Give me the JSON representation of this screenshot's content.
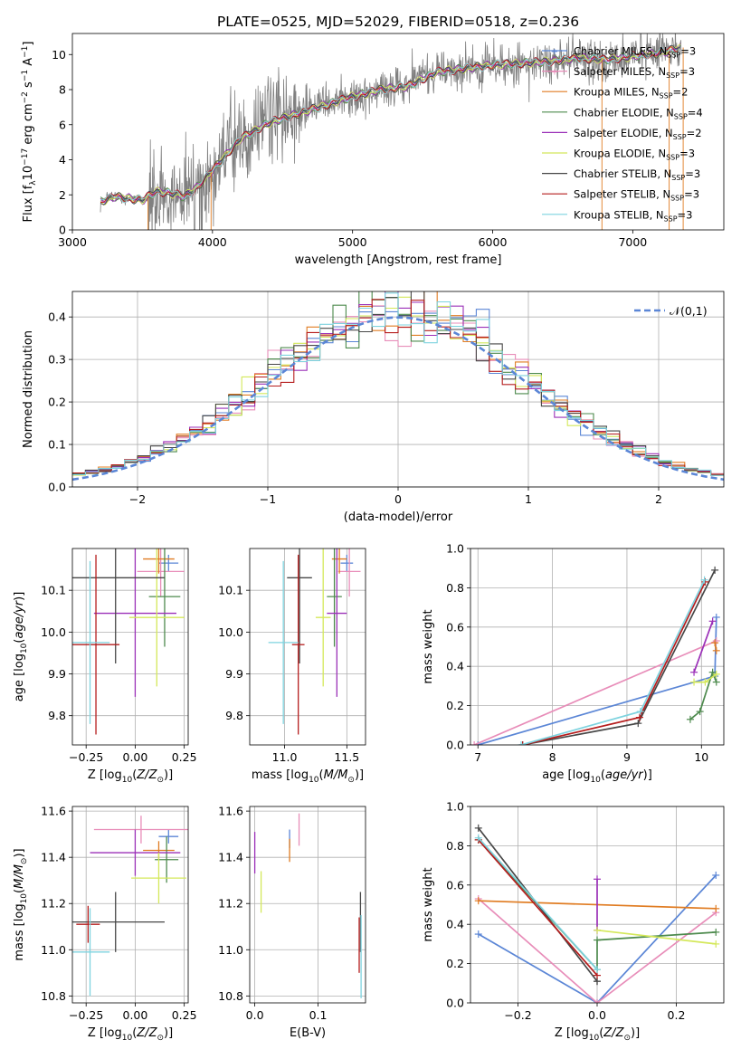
{
  "figure": {
    "title": "PLATE=0525, MJD=52029, FIBERID=0518, z=0.236",
    "models": [
      {
        "name": "Chabrier MILES",
        "nssp": "3",
        "color": "#5b86d6"
      },
      {
        "name": "Salpeter MILES",
        "nssp": "3",
        "color": "#e88db9"
      },
      {
        "name": "Kroupa MILES",
        "nssp": "2",
        "color": "#e07c22"
      },
      {
        "name": "Chabrier ELODIE",
        "nssp": "4",
        "color": "#4d8a4d"
      },
      {
        "name": "Salpeter ELODIE",
        "nssp": "2",
        "color": "#9b30b8"
      },
      {
        "name": "Kroupa ELODIE",
        "nssp": "3",
        "color": "#d4e85a"
      },
      {
        "name": "Chabrier STELIB",
        "nssp": "3",
        "color": "#474747"
      },
      {
        "name": "Salpeter STELIB",
        "nssp": "3",
        "color": "#b51d1d"
      },
      {
        "name": "Kroupa STELIB",
        "nssp": "3",
        "color": "#7ed3df"
      }
    ]
  },
  "chart_data": [
    {
      "id": "spectrum",
      "type": "line",
      "xlabel": "wavelength [Angstrom, rest frame]",
      "ylabel": "Flux [f",
      "xlim": [
        3000,
        7650
      ],
      "ylim": [
        0,
        11.2
      ],
      "xticks": [
        "3000",
        "4000",
        "5000",
        "6000",
        "7000"
      ],
      "yticks": [
        "0",
        "2",
        "4",
        "6",
        "8",
        "10"
      ],
      "data_color": "#808080",
      "continuum": {
        "x": [
          3200,
          3300,
          3400,
          3500,
          3600,
          3700,
          3800,
          3900,
          4000,
          4200,
          4400,
          4600,
          4800,
          5000,
          5200,
          5400,
          5600,
          5800,
          6000,
          6200,
          6400,
          6600,
          6800,
          7000,
          7200,
          7350
        ],
        "y": [
          1.6,
          1.9,
          1.8,
          1.7,
          2.2,
          2.1,
          1.9,
          2.5,
          3.4,
          5.2,
          6.1,
          6.6,
          7.1,
          7.6,
          8.0,
          8.2,
          9.0,
          9.2,
          9.4,
          9.5,
          9.6,
          9.8,
          9.7,
          9.9,
          10.1,
          10.4
        ]
      }
    },
    {
      "id": "residuals",
      "type": "histogram",
      "xlabel": "(data-model)/error",
      "ylabel": "Normed distribution",
      "xlim": [
        -2.5,
        2.5
      ],
      "ylim": [
        0,
        0.46
      ],
      "xticks": [
        -2,
        -1,
        0,
        1,
        2
      ],
      "yticks": [
        0.0,
        0.1,
        0.2,
        0.3,
        0.4
      ],
      "legend": {
        "label": "𝒩(0,1)",
        "position": "top-right"
      },
      "bin_edges": [
        -2.5,
        2.5
      ],
      "nbins": 50
    },
    {
      "id": "age-vs-Z",
      "type": "errorbar",
      "xlabel": "Z [log",
      "ylabel": "age  [log",
      "xlim": [
        -0.32,
        0.27
      ],
      "ylim": [
        9.73,
        10.2
      ],
      "xticks": [
        -0.25,
        0.0,
        0.25
      ],
      "yticks": [
        9.8,
        9.9,
        10.0,
        10.1
      ],
      "points": [
        {
          "model": 0,
          "x": 0.17,
          "xerr": 0.05,
          "y": 10.165,
          "yerr": 0.02
        },
        {
          "model": 1,
          "x": 0.13,
          "xerr": 0.12,
          "y": 10.145,
          "yerr": 0.06
        },
        {
          "model": 2,
          "x": 0.12,
          "xerr": 0.08,
          "y": 10.175,
          "yerr": 0.035
        },
        {
          "model": 3,
          "x": 0.15,
          "xerr": 0.08,
          "y": 10.085,
          "yerr": 0.12
        },
        {
          "model": 4,
          "x": 0.0,
          "xerr": 0.21,
          "y": 10.045,
          "yerr": 0.2
        },
        {
          "model": 5,
          "x": 0.11,
          "xerr": 0.14,
          "y": 10.035,
          "yerr": 0.165
        },
        {
          "model": 6,
          "x": -0.1,
          "xerr": 0.25,
          "y": 10.13,
          "yerr": 0.205
        },
        {
          "model": 7,
          "x": -0.2,
          "xerr": 0.12,
          "y": 9.97,
          "yerr": 0.215
        },
        {
          "model": 8,
          "x": -0.23,
          "xerr": 0.1,
          "y": 9.975,
          "yerr": 0.195
        }
      ]
    },
    {
      "id": "age-vs-mass",
      "type": "errorbar",
      "xlabel": "mass [log",
      "ylabel": "",
      "xlim": [
        10.72,
        11.65
      ],
      "ylim": [
        9.73,
        10.2
      ],
      "xticks": [
        11.0,
        11.5
      ],
      "yticks": [
        9.8,
        9.9,
        10.0,
        10.1
      ],
      "points": [
        {
          "model": 0,
          "x": 11.5,
          "xerr": 0.05,
          "y": 10.165,
          "yerr": 0.02
        },
        {
          "model": 1,
          "x": 11.52,
          "xerr": 0.09,
          "y": 10.145,
          "yerr": 0.06
        },
        {
          "model": 2,
          "x": 11.44,
          "xerr": 0.06,
          "y": 10.175,
          "yerr": 0.035
        },
        {
          "model": 3,
          "x": 11.4,
          "xerr": 0.06,
          "y": 10.085,
          "yerr": 0.12
        },
        {
          "model": 4,
          "x": 11.42,
          "xerr": 0.08,
          "y": 10.045,
          "yerr": 0.2
        },
        {
          "model": 5,
          "x": 11.31,
          "xerr": 0.06,
          "y": 10.035,
          "yerr": 0.165
        },
        {
          "model": 6,
          "x": 11.12,
          "xerr": 0.1,
          "y": 10.13,
          "yerr": 0.205
        },
        {
          "model": 7,
          "x": 11.11,
          "xerr": 0.05,
          "y": 9.97,
          "yerr": 0.215
        },
        {
          "model": 8,
          "x": 10.99,
          "xerr": 0.12,
          "y": 9.975,
          "yerr": 0.195
        }
      ]
    },
    {
      "id": "weight-vs-age",
      "type": "line",
      "xlabel": "age  [log",
      "ylabel": "mass weight",
      "xlim": [
        6.9,
        10.3
      ],
      "ylim": [
        0,
        1.0
      ],
      "xticks": [
        7,
        8,
        9,
        10
      ],
      "yticks": [
        0.0,
        0.2,
        0.4,
        0.6,
        0.8,
        1.0
      ],
      "series": [
        {
          "model": 0,
          "x": [
            7.0,
            10.18,
            10.2
          ],
          "y": [
            0.0,
            0.35,
            0.65
          ]
        },
        {
          "model": 1,
          "x": [
            6.95,
            10.2
          ],
          "y": [
            0.0,
            0.53
          ]
        },
        {
          "model": 2,
          "x": [
            10.18,
            10.2
          ],
          "y": [
            0.52,
            0.48
          ]
        },
        {
          "model": 3,
          "x": [
            9.85,
            9.98,
            10.15,
            10.2
          ],
          "y": [
            0.13,
            0.17,
            0.37,
            0.32
          ]
        },
        {
          "model": 4,
          "x": [
            9.9,
            10.15
          ],
          "y": [
            0.37,
            0.63
          ]
        },
        {
          "model": 5,
          "x": [
            9.9,
            10.05,
            10.2
          ],
          "y": [
            0.32,
            0.32,
            0.36
          ]
        },
        {
          "model": 6,
          "x": [
            7.6,
            9.15,
            10.18
          ],
          "y": [
            0.0,
            0.11,
            0.89
          ]
        },
        {
          "model": 7,
          "x": [
            7.6,
            9.17,
            10.05
          ],
          "y": [
            0.0,
            0.14,
            0.83
          ]
        },
        {
          "model": 8,
          "x": [
            7.58,
            9.18,
            10.04
          ],
          "y": [
            0.0,
            0.17,
            0.84
          ]
        }
      ]
    },
    {
      "id": "mass-vs-Z",
      "type": "errorbar",
      "xlabel": "Z [log",
      "ylabel": "mass [log",
      "xlim": [
        -0.32,
        0.27
      ],
      "ylim": [
        10.77,
        11.62
      ],
      "xticks": [
        -0.25,
        0.0,
        0.25
      ],
      "yticks": [
        10.8,
        11.0,
        11.2,
        11.4,
        11.6
      ],
      "points": [
        {
          "model": 0,
          "x": 0.17,
          "xerr": 0.05,
          "y": 11.49,
          "yerr": 0.03
        },
        {
          "model": 1,
          "x": 0.03,
          "xerr": 0.24,
          "y": 11.52,
          "yerr": 0.06
        },
        {
          "model": 2,
          "x": 0.12,
          "xerr": 0.08,
          "y": 11.43,
          "yerr": 0.04
        },
        {
          "model": 3,
          "x": 0.16,
          "xerr": 0.06,
          "y": 11.39,
          "yerr": 0.1
        },
        {
          "model": 4,
          "x": 0.0,
          "xerr": 0.23,
          "y": 11.42,
          "yerr": 0.1
        },
        {
          "model": 5,
          "x": 0.12,
          "xerr": 0.14,
          "y": 11.31,
          "yerr": 0.11
        },
        {
          "model": 6,
          "x": -0.1,
          "xerr": 0.25,
          "y": 11.12,
          "yerr": 0.13
        },
        {
          "model": 7,
          "x": -0.24,
          "xerr": 0.06,
          "y": 11.11,
          "yerr": 0.08
        },
        {
          "model": 8,
          "x": -0.23,
          "xerr": 0.1,
          "y": 10.99,
          "yerr": 0.19
        }
      ]
    },
    {
      "id": "mass-vs-EBV",
      "type": "errorbar",
      "xlabel": "E(B-V)",
      "ylabel": "",
      "xlim": [
        -0.008,
        0.175
      ],
      "ylim": [
        10.77,
        11.62
      ],
      "xticks": [
        0.0,
        0.1
      ],
      "yticks": [
        10.8,
        11.0,
        11.2,
        11.4,
        11.6
      ],
      "points": [
        {
          "model": 0,
          "x": 0.055,
          "xerr": 0.0,
          "y": 11.48,
          "yerr": 0.04
        },
        {
          "model": 1,
          "x": 0.07,
          "xerr": 0.0,
          "y": 11.52,
          "yerr": 0.07
        },
        {
          "model": 2,
          "x": 0.055,
          "xerr": 0.0,
          "y": 11.43,
          "yerr": 0.05
        },
        {
          "model": 4,
          "x": 0.0,
          "xerr": 0.0,
          "y": 11.42,
          "yerr": 0.09
        },
        {
          "model": 5,
          "x": 0.01,
          "xerr": 0.0,
          "y": 11.25,
          "yerr": 0.09
        },
        {
          "model": 6,
          "x": 0.167,
          "xerr": 0.0,
          "y": 11.12,
          "yerr": 0.13
        },
        {
          "model": 7,
          "x": 0.165,
          "xerr": 0.0,
          "y": 11.02,
          "yerr": 0.12
        },
        {
          "model": 8,
          "x": 0.168,
          "xerr": 0.0,
          "y": 10.97,
          "yerr": 0.18
        }
      ]
    },
    {
      "id": "weight-vs-Z",
      "type": "line",
      "xlabel": "Z [log",
      "ylabel": "mass weight",
      "xlim": [
        -0.32,
        0.32
      ],
      "ylim": [
        0,
        1.0
      ],
      "xticks": [
        -0.2,
        0.0,
        0.2
      ],
      "yticks": [
        0.0,
        0.2,
        0.4,
        0.6,
        0.8,
        1.0
      ],
      "series": [
        {
          "model": 0,
          "x": [
            -0.3,
            0.0,
            0.3
          ],
          "y": [
            0.35,
            0.0,
            0.65
          ]
        },
        {
          "model": 1,
          "x": [
            -0.3,
            0.0,
            0.3
          ],
          "y": [
            0.53,
            0.0,
            0.46
          ]
        },
        {
          "model": 2,
          "x": [
            -0.3,
            0.3
          ],
          "y": [
            0.52,
            0.48
          ]
        },
        {
          "model": 3,
          "x": [
            -0.3,
            0.0,
            0.0,
            0.3
          ],
          "y": [
            0.83,
            0.17,
            0.32,
            0.36
          ]
        },
        {
          "model": 4,
          "x": [
            0.0,
            0.0
          ],
          "y": [
            0.37,
            0.63
          ]
        },
        {
          "model": 5,
          "x": [
            0.0,
            0.3
          ],
          "y": [
            0.37,
            0.3
          ]
        },
        {
          "model": 6,
          "x": [
            -0.3,
            0.0,
            0.0
          ],
          "y": [
            0.89,
            0.11,
            0.11
          ]
        },
        {
          "model": 7,
          "x": [
            -0.3,
            0.0
          ],
          "y": [
            0.83,
            0.14
          ]
        },
        {
          "model": 8,
          "x": [
            -0.3,
            0.0
          ],
          "y": [
            0.84,
            0.17
          ]
        }
      ]
    }
  ]
}
